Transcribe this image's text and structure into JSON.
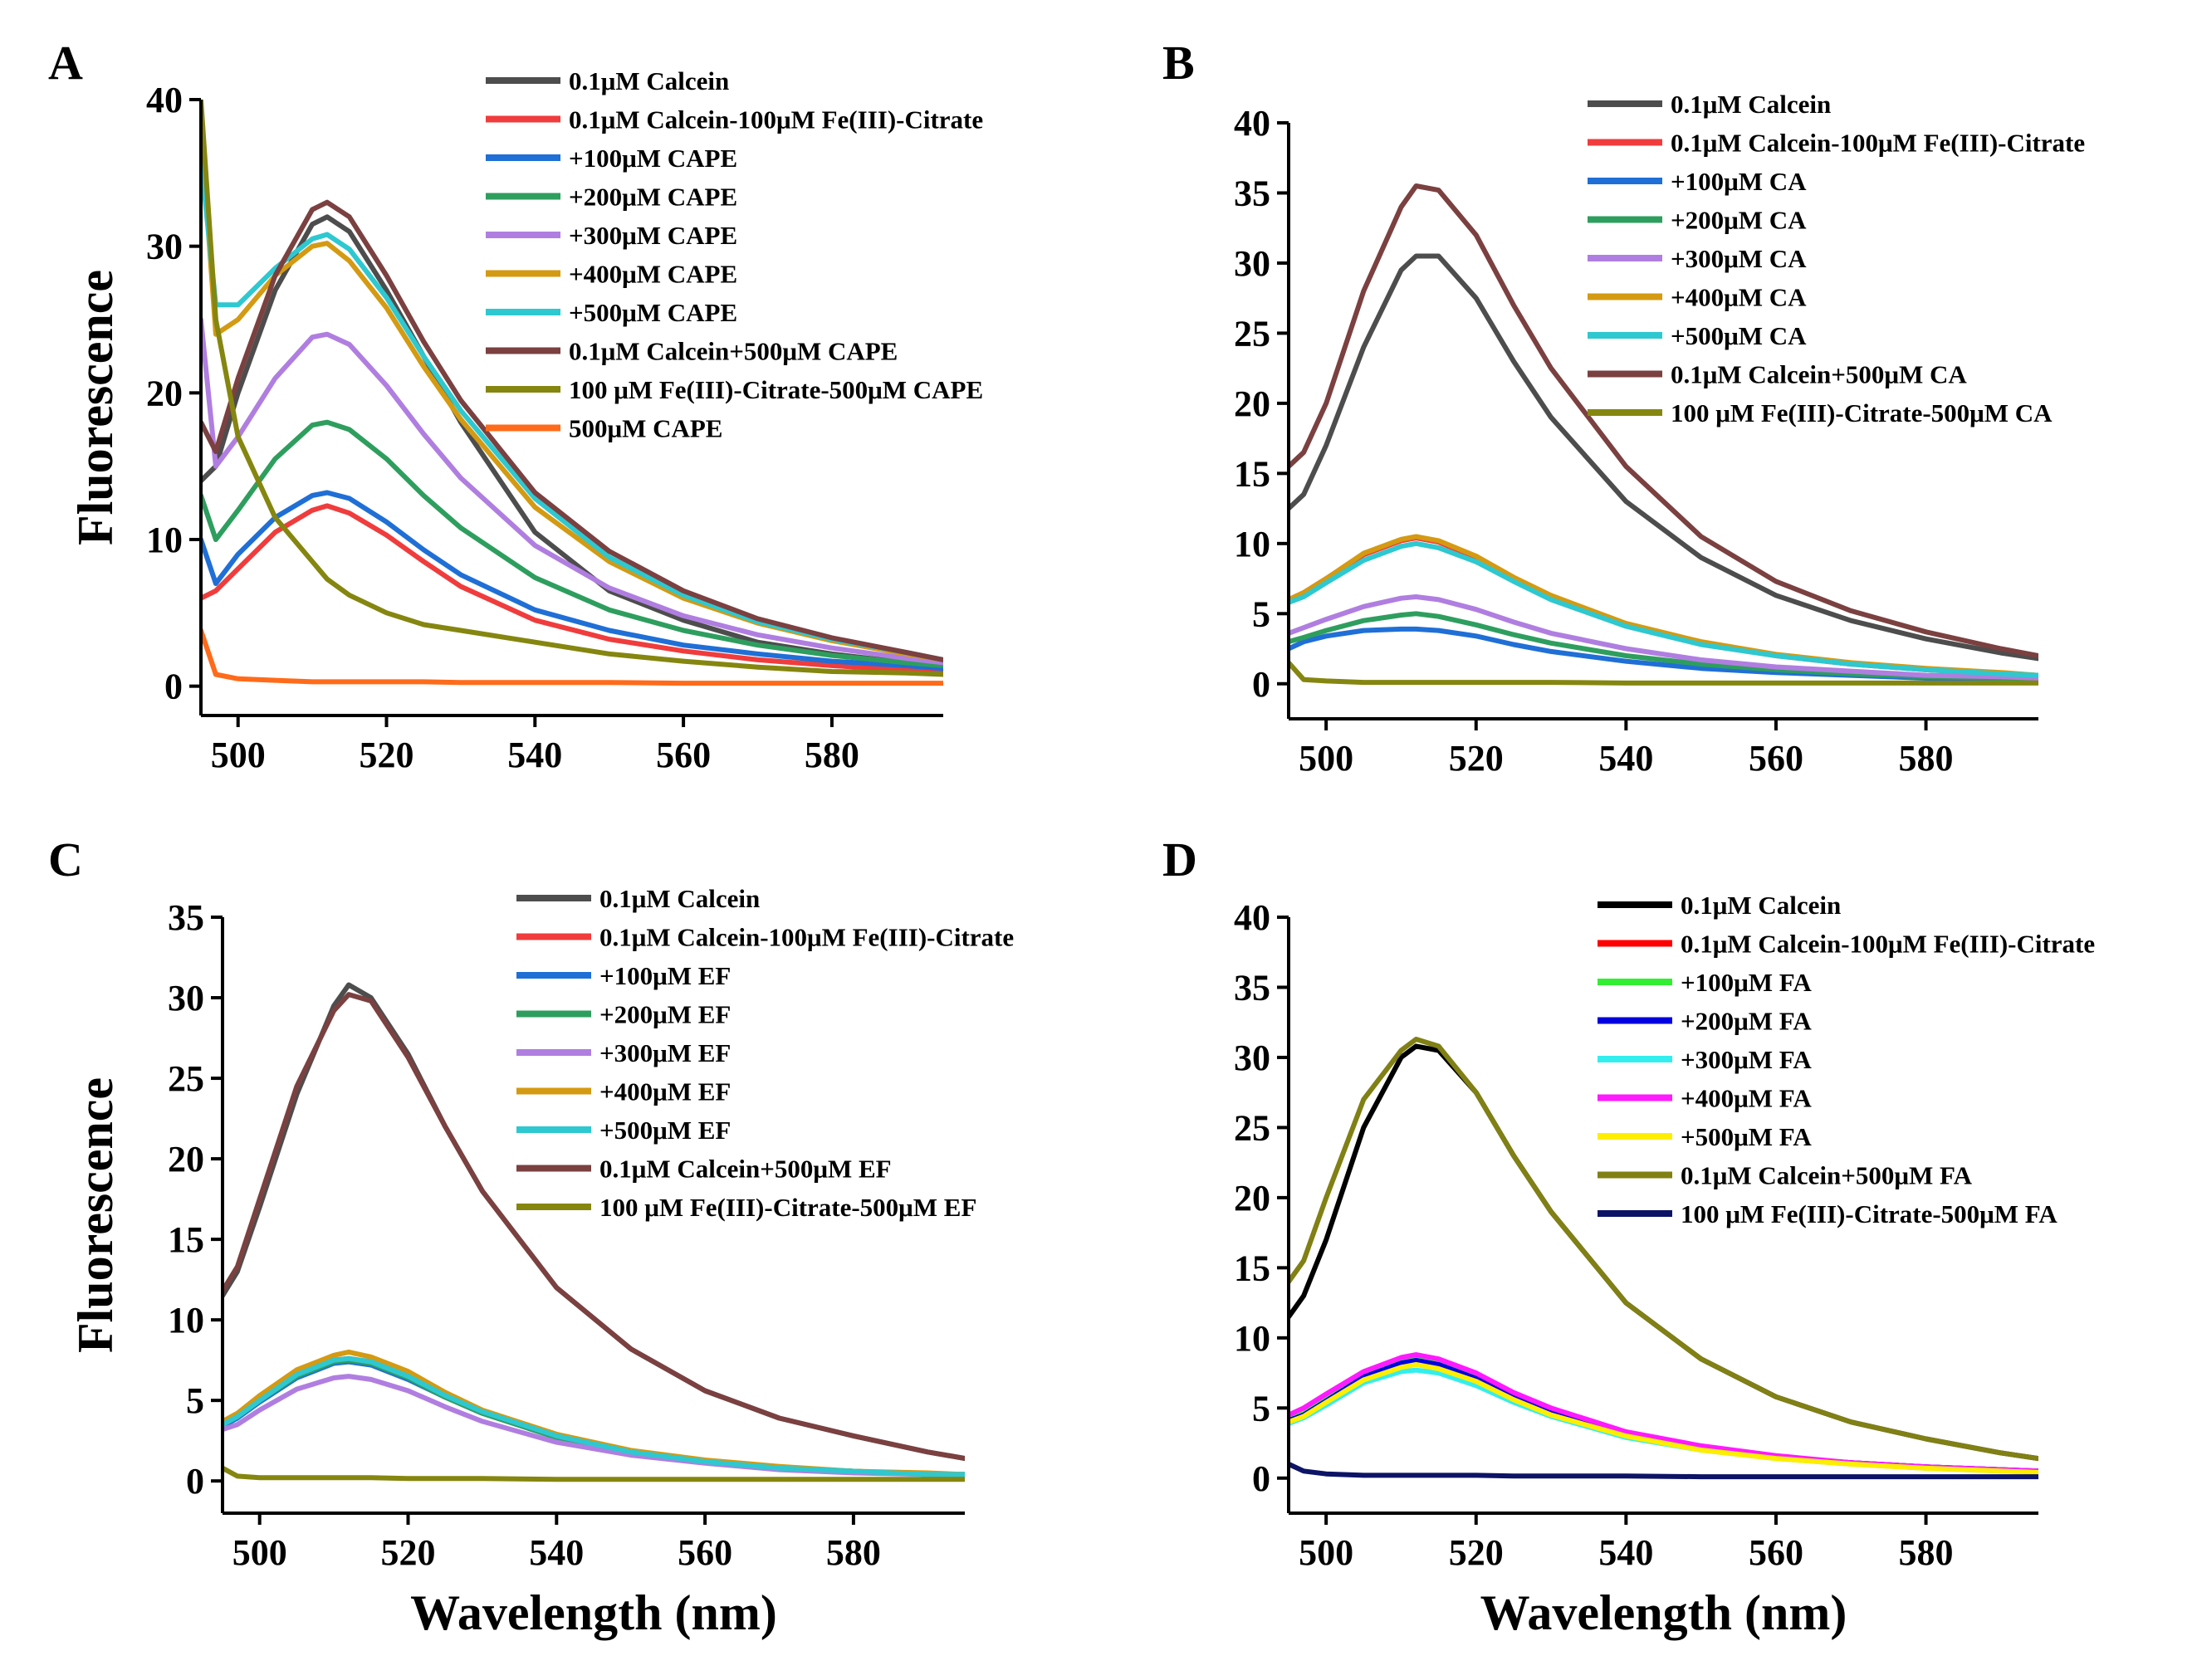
{
  "figure": {
    "y_axis_title": "Fluorescence",
    "x_axis_title": "Wavelength (nm)"
  },
  "chart_data": [
    {
      "panel": "A",
      "type": "line",
      "xlabel": "",
      "ylabel": "Fluorescence",
      "xlim": [
        495,
        595
      ],
      "ylim": [
        -2,
        40
      ],
      "xticks": [
        "500",
        "520",
        "540",
        "560",
        "580"
      ],
      "yticks": [
        "0",
        "10",
        "20",
        "30",
        "40"
      ],
      "x": [
        495,
        497,
        500,
        505,
        510,
        512,
        515,
        520,
        525,
        530,
        540,
        550,
        560,
        570,
        580,
        590,
        595
      ],
      "series": [
        {
          "name": "0.1μM Calcein",
          "color": "#4d4d4d",
          "values": [
            14,
            15,
            20,
            27,
            31.5,
            32,
            31,
            27,
            22.5,
            18,
            10.5,
            6.5,
            4.5,
            3,
            2.2,
            1.6,
            1.3
          ]
        },
        {
          "name": "0.1μM Calcein-100μM Fe(III)-Citrate",
          "color": "#f03c3c",
          "values": [
            6,
            6.5,
            8,
            10.5,
            12,
            12.3,
            11.8,
            10.3,
            8.5,
            6.8,
            4.5,
            3.2,
            2.4,
            1.8,
            1.4,
            1.1,
            1
          ]
        },
        {
          "name": "+100μM CAPE",
          "color": "#1f6fd6",
          "values": [
            10,
            7,
            9,
            11.5,
            13,
            13.2,
            12.8,
            11.2,
            9.3,
            7.6,
            5.2,
            3.8,
            2.8,
            2.2,
            1.7,
            1.4,
            1.2
          ]
        },
        {
          "name": "+200μM CAPE",
          "color": "#2e9e5e",
          "values": [
            13,
            10,
            12,
            15.5,
            17.8,
            18,
            17.5,
            15.5,
            13,
            10.8,
            7.4,
            5.2,
            3.8,
            2.8,
            2.1,
            1.6,
            1.4
          ]
        },
        {
          "name": "+300μM CAPE",
          "color": "#b07ee0",
          "values": [
            25,
            15,
            17,
            21,
            23.8,
            24,
            23.3,
            20.5,
            17.2,
            14.2,
            9.6,
            6.7,
            4.8,
            3.5,
            2.6,
            1.9,
            1.6
          ]
        },
        {
          "name": "+400μM CAPE",
          "color": "#d49a12",
          "values": [
            38,
            24,
            25,
            28,
            30,
            30.2,
            29,
            25.8,
            21.8,
            18.2,
            12.2,
            8.5,
            6,
            4.3,
            3.1,
            2.2,
            1.8
          ]
        },
        {
          "name": "+500μM CAPE",
          "color": "#2ec8d0",
          "values": [
            36,
            26,
            26,
            28.5,
            30.5,
            30.8,
            29.8,
            26.5,
            22.5,
            18.8,
            12.8,
            8.8,
            6.2,
            4.4,
            3.2,
            2.3,
            1.8
          ]
        },
        {
          "name": "0.1μM Calcein+500μM CAPE",
          "color": "#7b4040",
          "values": [
            18,
            16,
            21,
            28,
            32.5,
            33,
            32,
            28,
            23.5,
            19.5,
            13.2,
            9.2,
            6.5,
            4.6,
            3.3,
            2.3,
            1.8
          ]
        },
        {
          "name": "100 μM Fe(III)-Citrate-500μM CAPE",
          "color": "#85860f",
          "values": [
            40,
            25,
            17,
            11.5,
            8.5,
            7.3,
            6.2,
            5,
            4.2,
            3.8,
            3,
            2.2,
            1.7,
            1.3,
            1,
            0.9,
            0.8
          ]
        },
        {
          "name": "500μM CAPE",
          "color": "#ff6b1a",
          "values": [
            3.8,
            0.8,
            0.5,
            0.4,
            0.3,
            0.3,
            0.3,
            0.3,
            0.3,
            0.25,
            0.25,
            0.25,
            0.2,
            0.2,
            0.2,
            0.2,
            0.2
          ]
        }
      ]
    },
    {
      "panel": "B",
      "type": "line",
      "xlabel": "",
      "ylabel": "",
      "xlim": [
        495,
        595
      ],
      "ylim": [
        -2.5,
        40
      ],
      "xticks": [
        "500",
        "520",
        "540",
        "560",
        "580"
      ],
      "yticks": [
        "0",
        "5",
        "10",
        "15",
        "20",
        "25",
        "30",
        "35",
        "40"
      ],
      "x": [
        495,
        497,
        500,
        505,
        510,
        512,
        515,
        520,
        525,
        530,
        540,
        550,
        560,
        570,
        580,
        590,
        595
      ],
      "series": [
        {
          "name": "0.1μM Calcein",
          "color": "#4d4d4d",
          "values": [
            12.5,
            13.5,
            17,
            24,
            29.5,
            30.5,
            30.5,
            27.5,
            23,
            19,
            13,
            9,
            6.3,
            4.5,
            3.2,
            2.2,
            1.8
          ]
        },
        {
          "name": "0.1μM Calcein-100μM Fe(III)-Citrate",
          "color": "#f03c3c",
          "values": [
            6,
            6.5,
            7.5,
            9.2,
            10.2,
            10.4,
            10.1,
            9,
            7.5,
            6.2,
            4.2,
            2.9,
            2,
            1.4,
            1,
            0.7,
            0.6
          ]
        },
        {
          "name": "+100μM CA",
          "color": "#1f6fd6",
          "values": [
            2.5,
            3,
            3.4,
            3.8,
            3.9,
            3.9,
            3.8,
            3.4,
            2.8,
            2.3,
            1.6,
            1.1,
            0.8,
            0.6,
            0.4,
            0.3,
            0.3
          ]
        },
        {
          "name": "+200μM CA",
          "color": "#2e9e5e",
          "values": [
            3,
            3.3,
            3.8,
            4.5,
            4.9,
            5,
            4.8,
            4.2,
            3.5,
            2.9,
            2,
            1.4,
            1,
            0.7,
            0.5,
            0.4,
            0.3
          ]
        },
        {
          "name": "+300μM CA",
          "color": "#b07ee0",
          "values": [
            3.6,
            4,
            4.6,
            5.5,
            6.1,
            6.2,
            6,
            5.3,
            4.4,
            3.6,
            2.5,
            1.7,
            1.2,
            0.9,
            0.6,
            0.5,
            0.4
          ]
        },
        {
          "name": "+400μM CA",
          "color": "#d49a12",
          "values": [
            6,
            6.5,
            7.5,
            9.3,
            10.3,
            10.5,
            10.2,
            9.1,
            7.6,
            6.3,
            4.3,
            3,
            2.1,
            1.5,
            1.1,
            0.8,
            0.6
          ]
        },
        {
          "name": "+500μM CA",
          "color": "#2ec8d0",
          "values": [
            5.8,
            6.2,
            7.2,
            8.8,
            9.8,
            10,
            9.7,
            8.7,
            7.3,
            6,
            4.1,
            2.8,
            2,
            1.4,
            1,
            0.7,
            0.6
          ]
        },
        {
          "name": "0.1μM Calcein+500μM CA",
          "color": "#7b4040",
          "values": [
            15.5,
            16.5,
            20,
            28,
            34,
            35.5,
            35.2,
            32,
            27,
            22.5,
            15.5,
            10.5,
            7.3,
            5.2,
            3.7,
            2.5,
            2
          ]
        },
        {
          "name": "100 μM Fe(III)-Citrate-500μM CA",
          "color": "#85860f",
          "values": [
            1.5,
            0.3,
            0.2,
            0.1,
            0.1,
            0.1,
            0.1,
            0.1,
            0.1,
            0.1,
            0.05,
            0.05,
            0.05,
            0.05,
            0.05,
            0.05,
            0.05
          ]
        }
      ]
    },
    {
      "panel": "C",
      "type": "line",
      "xlabel": "Wavelength (nm)",
      "ylabel": "Fluorescence",
      "xlim": [
        495,
        595
      ],
      "ylim": [
        -2,
        35
      ],
      "xticks": [
        "500",
        "520",
        "540",
        "560",
        "580"
      ],
      "yticks": [
        "0",
        "5",
        "10",
        "15",
        "20",
        "25",
        "30",
        "35"
      ],
      "x": [
        495,
        497,
        500,
        505,
        510,
        512,
        515,
        520,
        525,
        530,
        540,
        550,
        560,
        570,
        580,
        590,
        595
      ],
      "series": [
        {
          "name": "0.1μM Calcein",
          "color": "#4d4d4d",
          "values": [
            11.5,
            13,
            17,
            24,
            29.5,
            30.8,
            30,
            26.5,
            22,
            18,
            12,
            8.2,
            5.6,
            3.9,
            2.8,
            1.8,
            1.4
          ]
        },
        {
          "name": "0.1μM Calcein-100μM Fe(III)-Citrate",
          "color": "#f03c3c",
          "values": [
            3.5,
            4,
            5,
            6.5,
            7.5,
            7.6,
            7.4,
            6.5,
            5.3,
            4.3,
            2.8,
            1.8,
            1.2,
            0.8,
            0.6,
            0.4,
            0.4
          ]
        },
        {
          "name": "+100μM EF",
          "color": "#1f6fd6",
          "values": [
            3.4,
            3.9,
            4.9,
            6.4,
            7.3,
            7.4,
            7.2,
            6.3,
            5.2,
            4.2,
            2.7,
            1.8,
            1.2,
            0.8,
            0.6,
            0.4,
            0.4
          ]
        },
        {
          "name": "+200μM EF",
          "color": "#2e9e5e",
          "values": [
            3.5,
            4,
            5,
            6.5,
            7.4,
            7.5,
            7.3,
            6.4,
            5.2,
            4.2,
            2.7,
            1.8,
            1.2,
            0.8,
            0.6,
            0.4,
            0.4
          ]
        },
        {
          "name": "+300μM EF",
          "color": "#b07ee0",
          "values": [
            3.2,
            3.5,
            4.4,
            5.7,
            6.4,
            6.5,
            6.3,
            5.6,
            4.6,
            3.7,
            2.4,
            1.6,
            1.1,
            0.7,
            0.5,
            0.4,
            0.3
          ]
        },
        {
          "name": "+400μM EF",
          "color": "#d49a12",
          "values": [
            3.7,
            4.2,
            5.3,
            6.9,
            7.8,
            8,
            7.7,
            6.8,
            5.5,
            4.4,
            2.9,
            1.9,
            1.3,
            0.9,
            0.6,
            0.5,
            0.4
          ]
        },
        {
          "name": "+500μM EF",
          "color": "#2ec8d0",
          "values": [
            3.5,
            4,
            5,
            6.6,
            7.5,
            7.6,
            7.4,
            6.5,
            5.3,
            4.3,
            2.8,
            1.8,
            1.2,
            0.8,
            0.6,
            0.4,
            0.4
          ]
        },
        {
          "name": "0.1μM Calcein+500μM EF",
          "color": "#7b4040",
          "values": [
            11.8,
            13.3,
            17.5,
            24.5,
            29.2,
            30.2,
            29.8,
            26.3,
            22,
            18,
            12,
            8.2,
            5.6,
            3.9,
            2.8,
            1.8,
            1.4
          ]
        },
        {
          "name": "100 μM Fe(III)-Citrate-500μM EF",
          "color": "#85860f",
          "values": [
            0.8,
            0.3,
            0.2,
            0.2,
            0.2,
            0.2,
            0.2,
            0.15,
            0.15,
            0.15,
            0.1,
            0.1,
            0.1,
            0.1,
            0.1,
            0.1,
            0.1
          ]
        }
      ]
    },
    {
      "panel": "D",
      "type": "line",
      "xlabel": "Wavelength (nm)",
      "ylabel": "",
      "xlim": [
        495,
        595
      ],
      "ylim": [
        -2.5,
        40
      ],
      "xticks": [
        "500",
        "520",
        "540",
        "560",
        "580"
      ],
      "yticks": [
        "0",
        "5",
        "10",
        "15",
        "20",
        "25",
        "30",
        "35",
        "40"
      ],
      "x": [
        495,
        497,
        500,
        505,
        510,
        512,
        515,
        520,
        525,
        530,
        540,
        550,
        560,
        570,
        580,
        590,
        595
      ],
      "series": [
        {
          "name": "0.1μM Calcein",
          "color": "#000000",
          "values": [
            11.5,
            13,
            17,
            25,
            30,
            30.8,
            30.5,
            27.5,
            23,
            19,
            12.5,
            8.5,
            5.8,
            4,
            2.8,
            1.8,
            1.4
          ]
        },
        {
          "name": "0.1μM Calcein-100μM Fe(III)-Citrate",
          "color": "#ff0000",
          "values": [
            4,
            4.5,
            5.5,
            7.2,
            8.3,
            8.5,
            8.2,
            7.2,
            5.9,
            4.8,
            3.2,
            2.2,
            1.5,
            1.1,
            0.8,
            0.6,
            0.5
          ]
        },
        {
          "name": "+100μM FA",
          "color": "#33ee33",
          "values": [
            4.2,
            4.6,
            5.6,
            7.3,
            8.3,
            8.5,
            8.2,
            7.2,
            5.9,
            4.8,
            3.2,
            2.2,
            1.5,
            1.1,
            0.8,
            0.6,
            0.5
          ]
        },
        {
          "name": "+200μM FA",
          "color": "#0000e0",
          "values": [
            4.1,
            4.5,
            5.5,
            7.2,
            8.2,
            8.4,
            8.1,
            7.1,
            5.8,
            4.7,
            3.1,
            2.1,
            1.5,
            1.1,
            0.8,
            0.6,
            0.5
          ]
        },
        {
          "name": "+300μM FA",
          "color": "#33eeee",
          "values": [
            3.9,
            4.3,
            5.2,
            6.8,
            7.6,
            7.7,
            7.5,
            6.6,
            5.4,
            4.4,
            2.9,
            2,
            1.4,
            1,
            0.7,
            0.5,
            0.5
          ]
        },
        {
          "name": "+400μM FA",
          "color": "#ff1aff",
          "values": [
            4.5,
            5,
            6,
            7.6,
            8.6,
            8.8,
            8.5,
            7.5,
            6.1,
            5,
            3.3,
            2.3,
            1.6,
            1.1,
            0.8,
            0.6,
            0.5
          ]
        },
        {
          "name": "+500μM FA",
          "color": "#ffee00",
          "values": [
            4,
            4.4,
            5.4,
            7,
            7.9,
            8.1,
            7.8,
            6.9,
            5.6,
            4.5,
            3,
            2,
            1.4,
            1,
            0.7,
            0.5,
            0.4
          ]
        },
        {
          "name": "0.1μM Calcein+500μM FA",
          "color": "#808014",
          "values": [
            14,
            15.5,
            20,
            27,
            30.5,
            31.3,
            30.8,
            27.5,
            23,
            19,
            12.5,
            8.5,
            5.8,
            4,
            2.8,
            1.8,
            1.4
          ]
        },
        {
          "name": "100 μM Fe(III)-Citrate-500μM FA",
          "color": "#0d1466",
          "values": [
            1,
            0.5,
            0.3,
            0.2,
            0.2,
            0.2,
            0.2,
            0.2,
            0.15,
            0.15,
            0.15,
            0.1,
            0.1,
            0.1,
            0.1,
            0.1,
            0.1
          ]
        }
      ]
    }
  ]
}
